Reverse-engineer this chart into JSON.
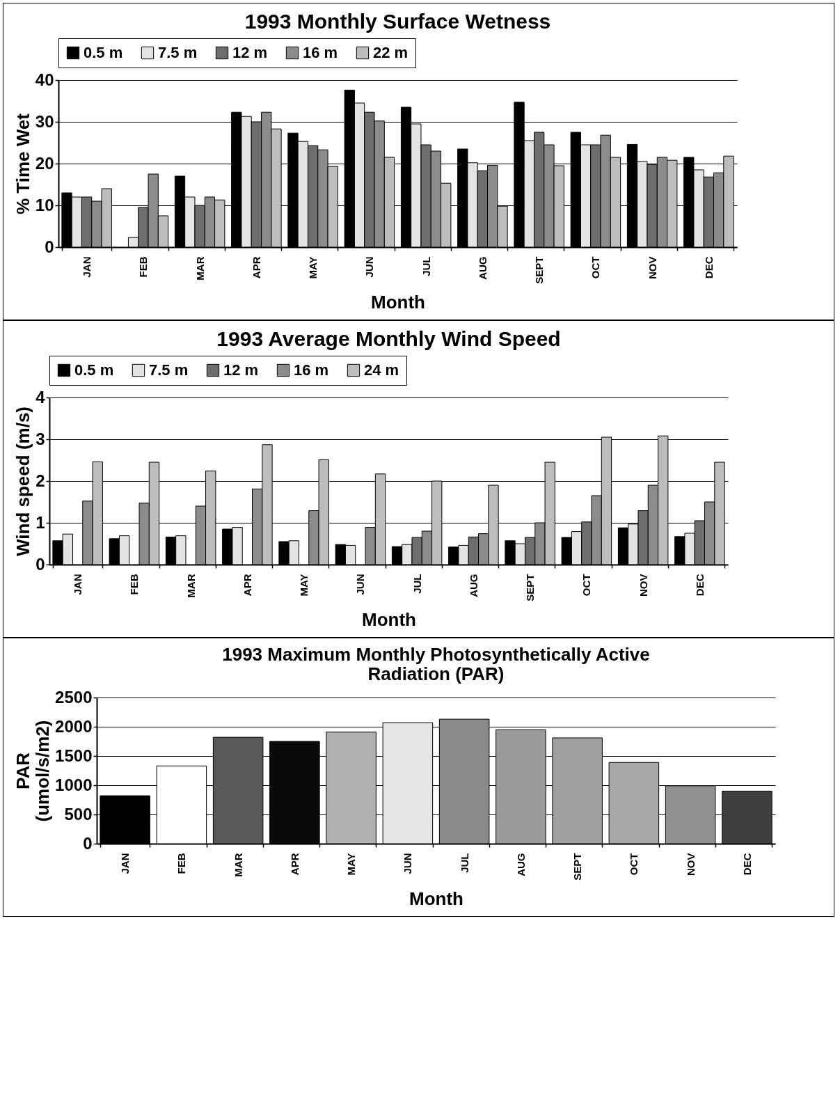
{
  "chart_data": [
    {
      "type": "bar",
      "title": "1993 Monthly Surface Wetness",
      "xlabel": "Month",
      "ylabel": "% Time Wet",
      "categories": [
        "JAN",
        "FEB",
        "MAR",
        "APR",
        "MAY",
        "JUN",
        "JUL",
        "AUG",
        "SEPT",
        "OCT",
        "NOV",
        "DEC"
      ],
      "ylim": [
        0,
        40
      ],
      "yticks": [
        0,
        10,
        20,
        30,
        40
      ],
      "grid": "y",
      "legend": "top",
      "series": [
        {
          "name": "0.5 m",
          "color": "#000000",
          "values": [
            13,
            null,
            17,
            32.3,
            27.3,
            37.6,
            33.5,
            23.5,
            34.7,
            27.5,
            24.6,
            21.5
          ]
        },
        {
          "name": "7.5 m",
          "color": "#e4e4e4",
          "values": [
            12,
            2.3,
            12,
            31.3,
            25.3,
            34.5,
            29.5,
            20.2,
            25.5,
            24.5,
            20.5,
            18.5
          ]
        },
        {
          "name": "12 m",
          "color": "#6e6e6e",
          "values": [
            12,
            9.5,
            10,
            30,
            24.3,
            32.3,
            24.5,
            18.3,
            27.5,
            24.5,
            19.8,
            16.8
          ]
        },
        {
          "name": "16 m",
          "color": "#8c8c8c",
          "values": [
            11,
            17.5,
            12,
            32.3,
            23.3,
            30.2,
            23,
            19.6,
            24.5,
            26.8,
            21.5,
            17.8
          ]
        },
        {
          "name": "22 m",
          "color": "#bdbdbd",
          "values": [
            14,
            7.5,
            11.3,
            28.3,
            19.3,
            21.5,
            15.3,
            9.8,
            19.5,
            21.5,
            20.8,
            21.8
          ]
        }
      ]
    },
    {
      "type": "bar",
      "title": "1993 Average Monthly Wind Speed",
      "xlabel": "Month",
      "ylabel": "Wind speed (m/s)",
      "categories": [
        "JAN",
        "FEB",
        "MAR",
        "APR",
        "MAY",
        "JUN",
        "JUL",
        "AUG",
        "SEPT",
        "OCT",
        "NOV",
        "DEC"
      ],
      "ylim": [
        0,
        4
      ],
      "yticks": [
        0,
        1,
        2,
        3,
        4
      ],
      "grid": "y",
      "legend": "top",
      "series": [
        {
          "name": "0.5 m",
          "color": "#000000",
          "values": [
            0.57,
            0.62,
            0.66,
            0.85,
            0.55,
            0.48,
            0.43,
            0.42,
            0.57,
            0.65,
            0.88,
            0.67
          ]
        },
        {
          "name": "7.5 m",
          "color": "#e4e4e4",
          "values": [
            0.73,
            0.69,
            0.69,
            0.89,
            0.57,
            0.46,
            0.48,
            0.46,
            0.5,
            0.79,
            0.97,
            0.75
          ]
        },
        {
          "name": "12 m",
          "color": "#6e6e6e",
          "values": [
            null,
            null,
            null,
            null,
            null,
            null,
            0.65,
            0.66,
            0.65,
            1.02,
            1.29,
            1.05
          ]
        },
        {
          "name": "16 m",
          "color": "#8c8c8c",
          "values": [
            1.52,
            1.47,
            1.4,
            1.81,
            1.29,
            0.89,
            0.8,
            0.74,
            1.0,
            1.65,
            1.9,
            1.5
          ]
        },
        {
          "name": "24 m",
          "color": "#bdbdbd",
          "values": [
            2.46,
            2.45,
            2.24,
            2.87,
            2.51,
            2.17,
            2.0,
            1.9,
            2.45,
            3.05,
            3.08,
            2.45
          ]
        }
      ]
    },
    {
      "type": "bar",
      "title": "1993 Maximum Monthly Photosynthetically Active\nRadiation (PAR)",
      "xlabel": "Month",
      "ylabel": "PAR\n(umol/s/m2)",
      "categories": [
        "JAN",
        "FEB",
        "MAR",
        "APR",
        "MAY",
        "JUN",
        "JUL",
        "AUG",
        "SEPT",
        "OCT",
        "NOV",
        "DEC"
      ],
      "ylim": [
        0,
        2500
      ],
      "yticks": [
        0,
        500,
        1000,
        1500,
        2000,
        2500
      ],
      "grid": "y",
      "values": [
        820,
        1330,
        1820,
        1750,
        1910,
        2070,
        2130,
        1950,
        1810,
        1390,
        990,
        900
      ],
      "colors": [
        "#000000",
        "#ffffff",
        "#5a5a5a",
        "#0a0a0a",
        "#b0b0b0",
        "#e6e6e6",
        "#8a8a8a",
        "#9a9a9a",
        "#a0a0a0",
        "#a8a8a8",
        "#909090",
        "#404040"
      ]
    }
  ]
}
